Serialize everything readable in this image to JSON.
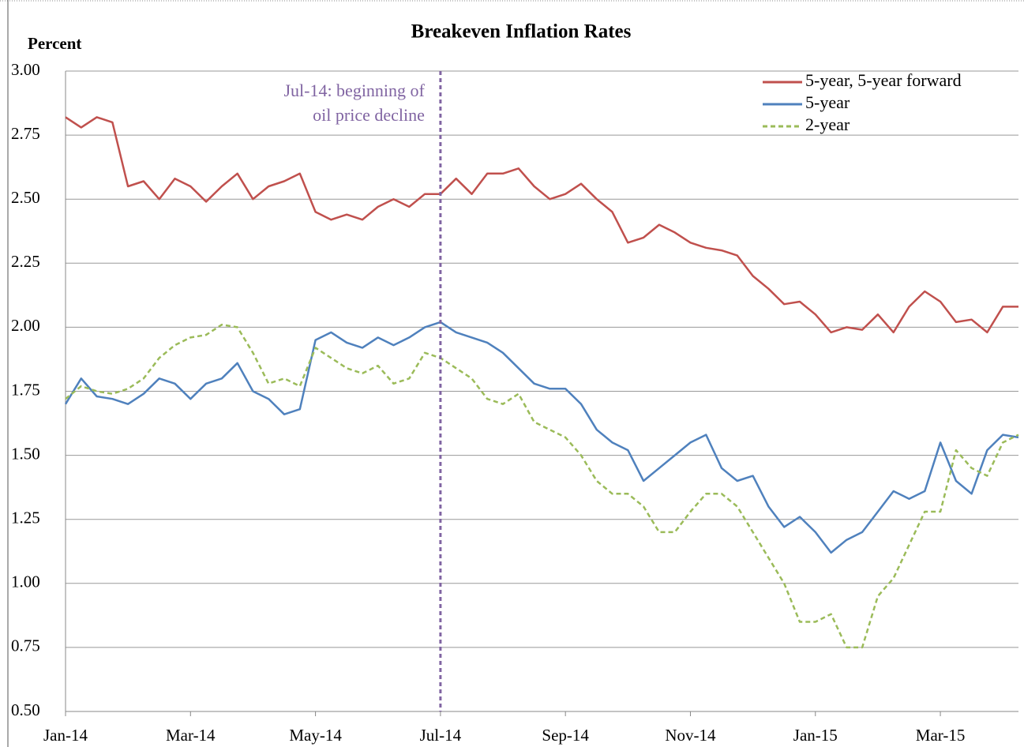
{
  "chart_data": {
    "type": "line",
    "title": "Breakeven Inflation Rates",
    "y_label": "Percent",
    "categories": [
      "Jan-14",
      null,
      null,
      null,
      null,
      null,
      null,
      null,
      "Mar-14",
      null,
      null,
      null,
      null,
      null,
      null,
      null,
      "May-14",
      null,
      null,
      null,
      null,
      null,
      null,
      null,
      "Jul-14",
      null,
      null,
      null,
      null,
      null,
      null,
      null,
      "Sep-14",
      null,
      null,
      null,
      null,
      null,
      null,
      null,
      "Nov-14",
      null,
      null,
      null,
      null,
      null,
      null,
      null,
      "Jan-15",
      null,
      null,
      null,
      null,
      null,
      null,
      null,
      "Mar-15",
      null,
      null,
      null,
      null,
      null
    ],
    "series": [
      {
        "name": "5-year, 5-year forward",
        "color": "#c0504d",
        "dash": false,
        "values": [
          2.82,
          2.78,
          2.82,
          2.8,
          2.55,
          2.57,
          2.5,
          2.58,
          2.55,
          2.49,
          2.55,
          2.6,
          2.5,
          2.55,
          2.57,
          2.6,
          2.45,
          2.42,
          2.44,
          2.42,
          2.47,
          2.5,
          2.47,
          2.52,
          2.52,
          2.58,
          2.52,
          2.6,
          2.6,
          2.62,
          2.55,
          2.5,
          2.52,
          2.56,
          2.5,
          2.45,
          2.33,
          2.35,
          2.4,
          2.37,
          2.33,
          2.31,
          2.3,
          2.28,
          2.2,
          2.15,
          2.09,
          2.1,
          2.05,
          1.98,
          2.0,
          1.99,
          2.05,
          1.98,
          2.08,
          2.14,
          2.1,
          2.02,
          2.03,
          1.98,
          2.08,
          2.08
        ]
      },
      {
        "name": "5-year",
        "color": "#4f81bd",
        "dash": false,
        "values": [
          1.7,
          1.8,
          1.73,
          1.72,
          1.7,
          1.74,
          1.8,
          1.78,
          1.72,
          1.78,
          1.8,
          1.86,
          1.75,
          1.72,
          1.66,
          1.68,
          1.95,
          1.98,
          1.94,
          1.92,
          1.96,
          1.93,
          1.96,
          2.0,
          2.02,
          1.98,
          1.96,
          1.94,
          1.9,
          1.84,
          1.78,
          1.76,
          1.76,
          1.7,
          1.6,
          1.55,
          1.52,
          1.4,
          1.45,
          1.5,
          1.55,
          1.58,
          1.45,
          1.4,
          1.42,
          1.3,
          1.22,
          1.26,
          1.2,
          1.12,
          1.17,
          1.2,
          1.28,
          1.36,
          1.33,
          1.36,
          1.55,
          1.4,
          1.35,
          1.52,
          1.58,
          1.57
        ]
      },
      {
        "name": "2-year",
        "color": "#9bbb59",
        "dash": true,
        "values": [
          1.72,
          1.77,
          1.75,
          1.74,
          1.76,
          1.8,
          1.88,
          1.93,
          1.96,
          1.97,
          2.01,
          2.0,
          1.9,
          1.78,
          1.8,
          1.77,
          1.92,
          1.88,
          1.84,
          1.82,
          1.85,
          1.78,
          1.8,
          1.9,
          1.88,
          1.84,
          1.8,
          1.72,
          1.7,
          1.74,
          1.63,
          1.6,
          1.57,
          1.5,
          1.4,
          1.35,
          1.35,
          1.3,
          1.2,
          1.2,
          1.28,
          1.35,
          1.35,
          1.3,
          1.2,
          1.1,
          1.0,
          0.85,
          0.85,
          0.88,
          0.75,
          0.75,
          0.95,
          1.02,
          1.15,
          1.28,
          1.28,
          1.52,
          1.45,
          1.42,
          1.55,
          1.58
        ]
      }
    ],
    "ylim": [
      0.5,
      3.0
    ],
    "yticks": [
      {
        "value": 0.5,
        "label": "0.50"
      },
      {
        "value": 0.75,
        "label": "0.75"
      },
      {
        "value": 1,
        "label": "1.00"
      },
      {
        "value": 1.25,
        "label": "1.25"
      },
      {
        "value": 1.5,
        "label": "1.50"
      },
      {
        "value": 1.75,
        "label": "1.75"
      },
      {
        "value": 2,
        "label": "2.00"
      },
      {
        "value": 2.25,
        "label": "2.25"
      },
      {
        "value": 2.5,
        "label": "2.50"
      },
      {
        "value": 2.75,
        "label": "2.75"
      },
      {
        "value": 3,
        "label": "3.00"
      }
    ],
    "grid": true,
    "legend": "top-right",
    "annotation": {
      "lines": [
        "Jul-14: beginning of",
        "oil price decline"
      ],
      "at": "Jul-14",
      "color": "#8064a2"
    }
  }
}
